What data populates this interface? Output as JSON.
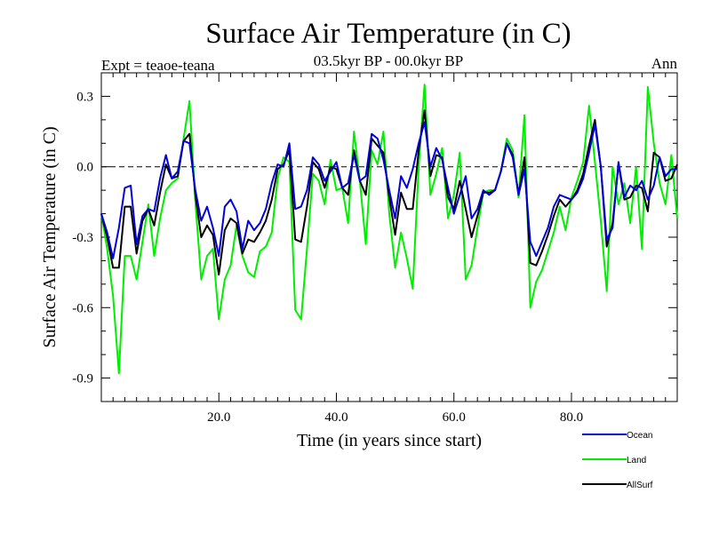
{
  "chart_data": {
    "type": "line",
    "title": "Surface Air Temperature (in C)",
    "subtitle": "03.5kyr BP - 00.0kyr BP",
    "left_note": "Expt = teaoe-teana",
    "right_note": "Ann",
    "xlabel": "Time (in years since start)",
    "ylabel": "Surface Air Temperature (in C)",
    "xlim": [
      0,
      98
    ],
    "ylim": [
      -1.0,
      0.4
    ],
    "xticks": [
      20,
      40,
      60,
      80
    ],
    "xtick_labels": [
      "20.0",
      "40.0",
      "60.0",
      "80.0"
    ],
    "yticks": [
      0.3,
      0.0,
      -0.3,
      -0.6,
      -0.9
    ],
    "ytick_labels": [
      "0.3",
      "0.0",
      "-0.3",
      "-0.6",
      "-0.9"
    ],
    "reference_line": 0.0,
    "legend_position": "bottom-right",
    "x": [
      0,
      1,
      2,
      3,
      4,
      5,
      6,
      7,
      8,
      9,
      10,
      11,
      12,
      13,
      14,
      15,
      16,
      17,
      18,
      19,
      20,
      21,
      22,
      23,
      24,
      25,
      26,
      27,
      28,
      29,
      30,
      31,
      32,
      33,
      34,
      35,
      36,
      37,
      38,
      39,
      40,
      41,
      42,
      43,
      44,
      45,
      46,
      47,
      48,
      49,
      50,
      51,
      52,
      53,
      54,
      55,
      56,
      57,
      58,
      59,
      60,
      61,
      62,
      63,
      64,
      65,
      66,
      67,
      68,
      69,
      70,
      71,
      72,
      73,
      74,
      75,
      76,
      77,
      78,
      79,
      80,
      81,
      82,
      83,
      84,
      85,
      86,
      87,
      88,
      89,
      90,
      91,
      92,
      93,
      94,
      95,
      96,
      97,
      98
    ],
    "series": [
      {
        "name": "Ocean",
        "color": "#0000dd",
        "values": [
          -0.2,
          -0.28,
          -0.39,
          -0.26,
          -0.09,
          -0.08,
          -0.33,
          -0.21,
          -0.18,
          -0.19,
          -0.05,
          0.05,
          -0.05,
          -0.02,
          0.11,
          0.1,
          -0.1,
          -0.23,
          -0.17,
          -0.26,
          -0.38,
          -0.17,
          -0.14,
          -0.19,
          -0.35,
          -0.23,
          -0.27,
          -0.24,
          -0.18,
          -0.07,
          0.01,
          0.0,
          0.1,
          -0.18,
          -0.17,
          -0.1,
          0.04,
          0.01,
          -0.06,
          -0.02,
          0.02,
          -0.09,
          -0.07,
          0.05,
          -0.06,
          -0.04,
          0.14,
          0.12,
          0.03,
          -0.1,
          -0.22,
          -0.04,
          -0.09,
          -0.01,
          0.1,
          0.19,
          0.0,
          0.08,
          0.03,
          -0.09,
          -0.2,
          -0.12,
          -0.04,
          -0.22,
          -0.18,
          -0.1,
          -0.12,
          -0.1,
          -0.02,
          0.1,
          0.04,
          -0.12,
          -0.01,
          -0.32,
          -0.38,
          -0.32,
          -0.26,
          -0.17,
          -0.12,
          -0.13,
          -0.14,
          -0.11,
          -0.05,
          0.06,
          0.18,
          0.0,
          -0.31,
          -0.26,
          0.02,
          -0.13,
          -0.08,
          -0.1,
          -0.06,
          -0.14,
          -0.08,
          0.04,
          -0.04,
          -0.01,
          -0.01
        ]
      },
      {
        "name": "Land",
        "color": "#00ee00",
        "values": [
          -0.2,
          -0.35,
          -0.55,
          -0.88,
          -0.38,
          -0.38,
          -0.48,
          -0.32,
          -0.16,
          -0.38,
          -0.22,
          -0.1,
          -0.07,
          -0.05,
          0.12,
          0.28,
          -0.15,
          -0.48,
          -0.38,
          -0.35,
          -0.65,
          -0.48,
          -0.42,
          -0.25,
          -0.38,
          -0.45,
          -0.47,
          -0.36,
          -0.34,
          -0.28,
          -0.05,
          0.04,
          0.02,
          -0.61,
          -0.65,
          -0.35,
          -0.03,
          -0.06,
          -0.16,
          0.03,
          -0.1,
          -0.09,
          -0.24,
          0.15,
          -0.06,
          -0.33,
          0.07,
          0.01,
          0.15,
          -0.2,
          -0.43,
          -0.28,
          -0.39,
          -0.52,
          0.0,
          0.35,
          -0.12,
          -0.03,
          0.08,
          -0.22,
          -0.12,
          0.06,
          -0.48,
          -0.42,
          -0.26,
          -0.11,
          -0.1,
          -0.1,
          -0.02,
          0.12,
          0.07,
          -0.13,
          0.22,
          -0.6,
          -0.49,
          -0.44,
          -0.36,
          -0.28,
          -0.17,
          -0.27,
          -0.13,
          -0.06,
          0.02,
          0.26,
          0.02,
          -0.23,
          -0.53,
          0.0,
          -0.16,
          -0.07,
          -0.24,
          0.0,
          -0.35,
          0.34,
          0.1,
          -0.07,
          -0.16,
          0.05,
          -0.22
        ]
      },
      {
        "name": "AllSurf",
        "color": "#000000",
        "values": [
          -0.2,
          -0.3,
          -0.43,
          -0.43,
          -0.17,
          -0.17,
          -0.37,
          -0.23,
          -0.18,
          -0.25,
          -0.11,
          0.01,
          -0.05,
          -0.04,
          0.11,
          0.14,
          -0.12,
          -0.3,
          -0.25,
          -0.29,
          -0.46,
          -0.27,
          -0.22,
          -0.24,
          -0.37,
          -0.31,
          -0.32,
          -0.28,
          -0.23,
          -0.14,
          -0.01,
          0.01,
          0.07,
          -0.31,
          -0.32,
          -0.17,
          0.02,
          -0.01,
          -0.09,
          0.0,
          -0.01,
          -0.09,
          -0.12,
          0.07,
          -0.06,
          -0.12,
          0.12,
          0.09,
          0.06,
          -0.13,
          -0.29,
          -0.11,
          -0.18,
          -0.18,
          0.07,
          0.24,
          -0.04,
          0.05,
          0.04,
          -0.13,
          -0.18,
          -0.06,
          -0.18,
          -0.3,
          -0.21,
          -0.11,
          -0.11,
          -0.1,
          -0.02,
          0.1,
          0.05,
          -0.12,
          0.04,
          -0.41,
          -0.42,
          -0.36,
          -0.29,
          -0.21,
          -0.14,
          -0.17,
          -0.14,
          -0.1,
          -0.03,
          0.09,
          0.2,
          0.0,
          -0.34,
          -0.24,
          0.01,
          -0.14,
          -0.13,
          -0.08,
          -0.09,
          -0.19,
          0.06,
          0.04,
          -0.06,
          -0.05,
          0.01
        ]
      }
    ]
  }
}
